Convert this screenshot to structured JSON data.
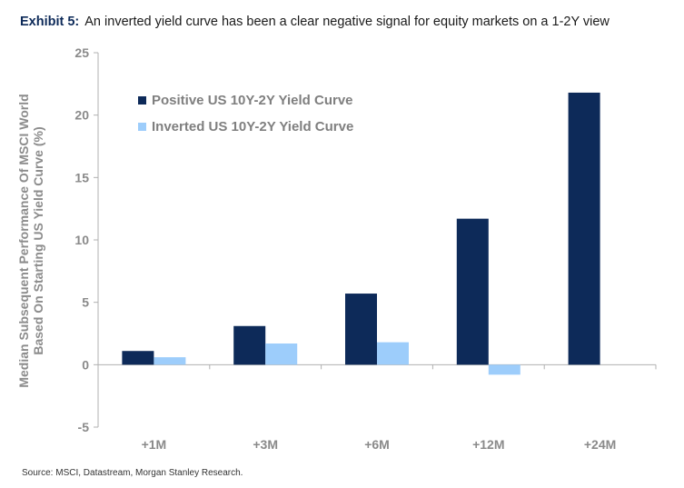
{
  "title": {
    "exhibit": "Exhibit 5:",
    "text": "An inverted yield curve has been a clear negative signal for equity markets on a 1-2Y view"
  },
  "source": "Source: MSCI, Datastream, Morgan Stanley Research.",
  "colors": {
    "positive": "#0d2a59",
    "inverted": "#9dcdfb",
    "axis": "#b0b0b0"
  },
  "chart_data": {
    "type": "bar",
    "title": "An inverted yield curve has been a clear negative signal for equity markets on a 1-2Y view",
    "categories": [
      "+1M",
      "+3M",
      "+6M",
      "+12M",
      "+24M"
    ],
    "series": [
      {
        "name": "Positive US 10Y-2Y Yield Curve",
        "values": [
          1.1,
          3.1,
          5.7,
          11.7,
          21.8
        ]
      },
      {
        "name": "Inverted US 10Y-2Y Yield Curve",
        "values": [
          0.6,
          1.7,
          1.8,
          -0.8,
          null
        ]
      }
    ],
    "ylabel_lines": [
      "Median Subsequent Performance Of MSCI World",
      "Based On Starting US Yield Curve (%)"
    ],
    "xlabel": "",
    "ylim": [
      -5,
      25
    ],
    "yticks": [
      -5,
      0,
      5,
      10,
      15,
      20,
      25
    ],
    "legend": "top-left",
    "grid": false
  }
}
